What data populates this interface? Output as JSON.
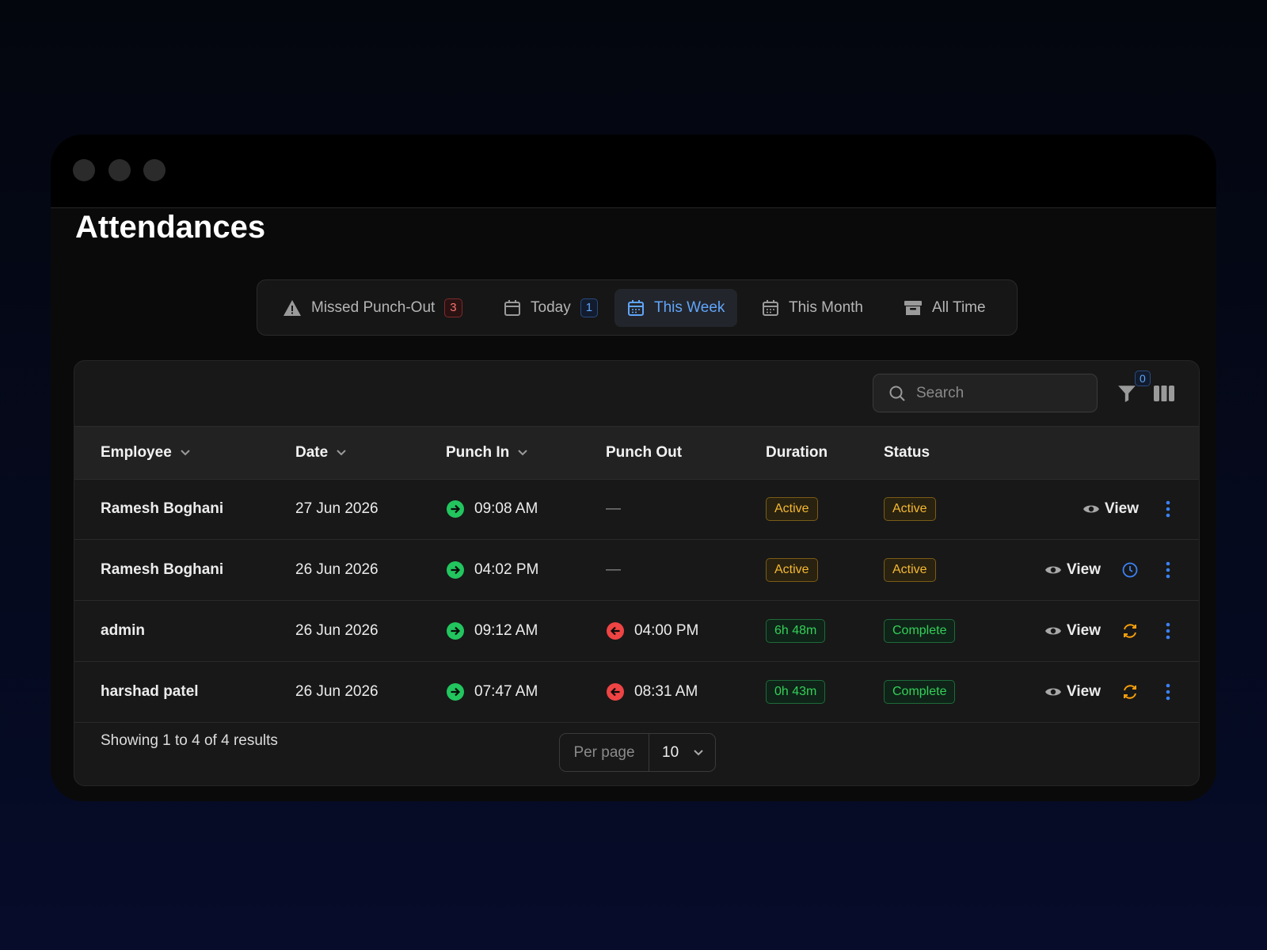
{
  "header": {
    "title": "Attendances"
  },
  "tabs": [
    {
      "label": "Missed Punch-Out",
      "icon": "warning",
      "badge": 3,
      "badge_tone": "danger"
    },
    {
      "label": "Today",
      "icon": "calendar",
      "badge": 1,
      "badge_tone": "info"
    },
    {
      "label": "This Week",
      "icon": "calendar-days",
      "active": true
    },
    {
      "label": "This Month",
      "icon": "calendar-days"
    },
    {
      "label": "All Time",
      "icon": "archive"
    }
  ],
  "toolbar": {
    "search_placeholder": "Search",
    "filter_count": 0
  },
  "table": {
    "columns": [
      {
        "label": "Employee",
        "sortable": true
      },
      {
        "label": "Date",
        "sortable": true
      },
      {
        "label": "Punch In",
        "sortable": true
      },
      {
        "label": "Punch Out",
        "sortable": false
      },
      {
        "label": "Duration",
        "sortable": false
      },
      {
        "label": "Status",
        "sortable": false
      }
    ],
    "rows": [
      {
        "employee": "Ramesh Boghani",
        "date": "27 Jun 2026",
        "punch_in": "09:08 AM",
        "punch_out": "—",
        "punched_out": false,
        "duration": "Active",
        "status": "Active",
        "tone": "warning",
        "action": "View",
        "extra_icon": null
      },
      {
        "employee": "Ramesh Boghani",
        "date": "26 Jun 2026",
        "punch_in": "04:02 PM",
        "punch_out": "—",
        "punched_out": false,
        "duration": "Active",
        "status": "Active",
        "tone": "warning",
        "action": "View",
        "extra_icon": "clock"
      },
      {
        "employee": "admin",
        "date": "26 Jun 2026",
        "punch_in": "09:12 AM",
        "punch_out": "04:00 PM",
        "punched_out": true,
        "duration": "6h 48m",
        "status": "Complete",
        "tone": "success",
        "action": "View",
        "extra_icon": "refresh"
      },
      {
        "employee": "harshad patel",
        "date": "26 Jun 2026",
        "punch_in": "07:47 AM",
        "punch_out": "08:31 AM",
        "punched_out": true,
        "duration": "0h 43m",
        "status": "Complete",
        "tone": "success",
        "action": "View",
        "extra_icon": "refresh"
      }
    ]
  },
  "footer": {
    "summary": "Showing 1 to 4 of 4 results",
    "per_page_label": "Per page",
    "per_page": 10
  }
}
